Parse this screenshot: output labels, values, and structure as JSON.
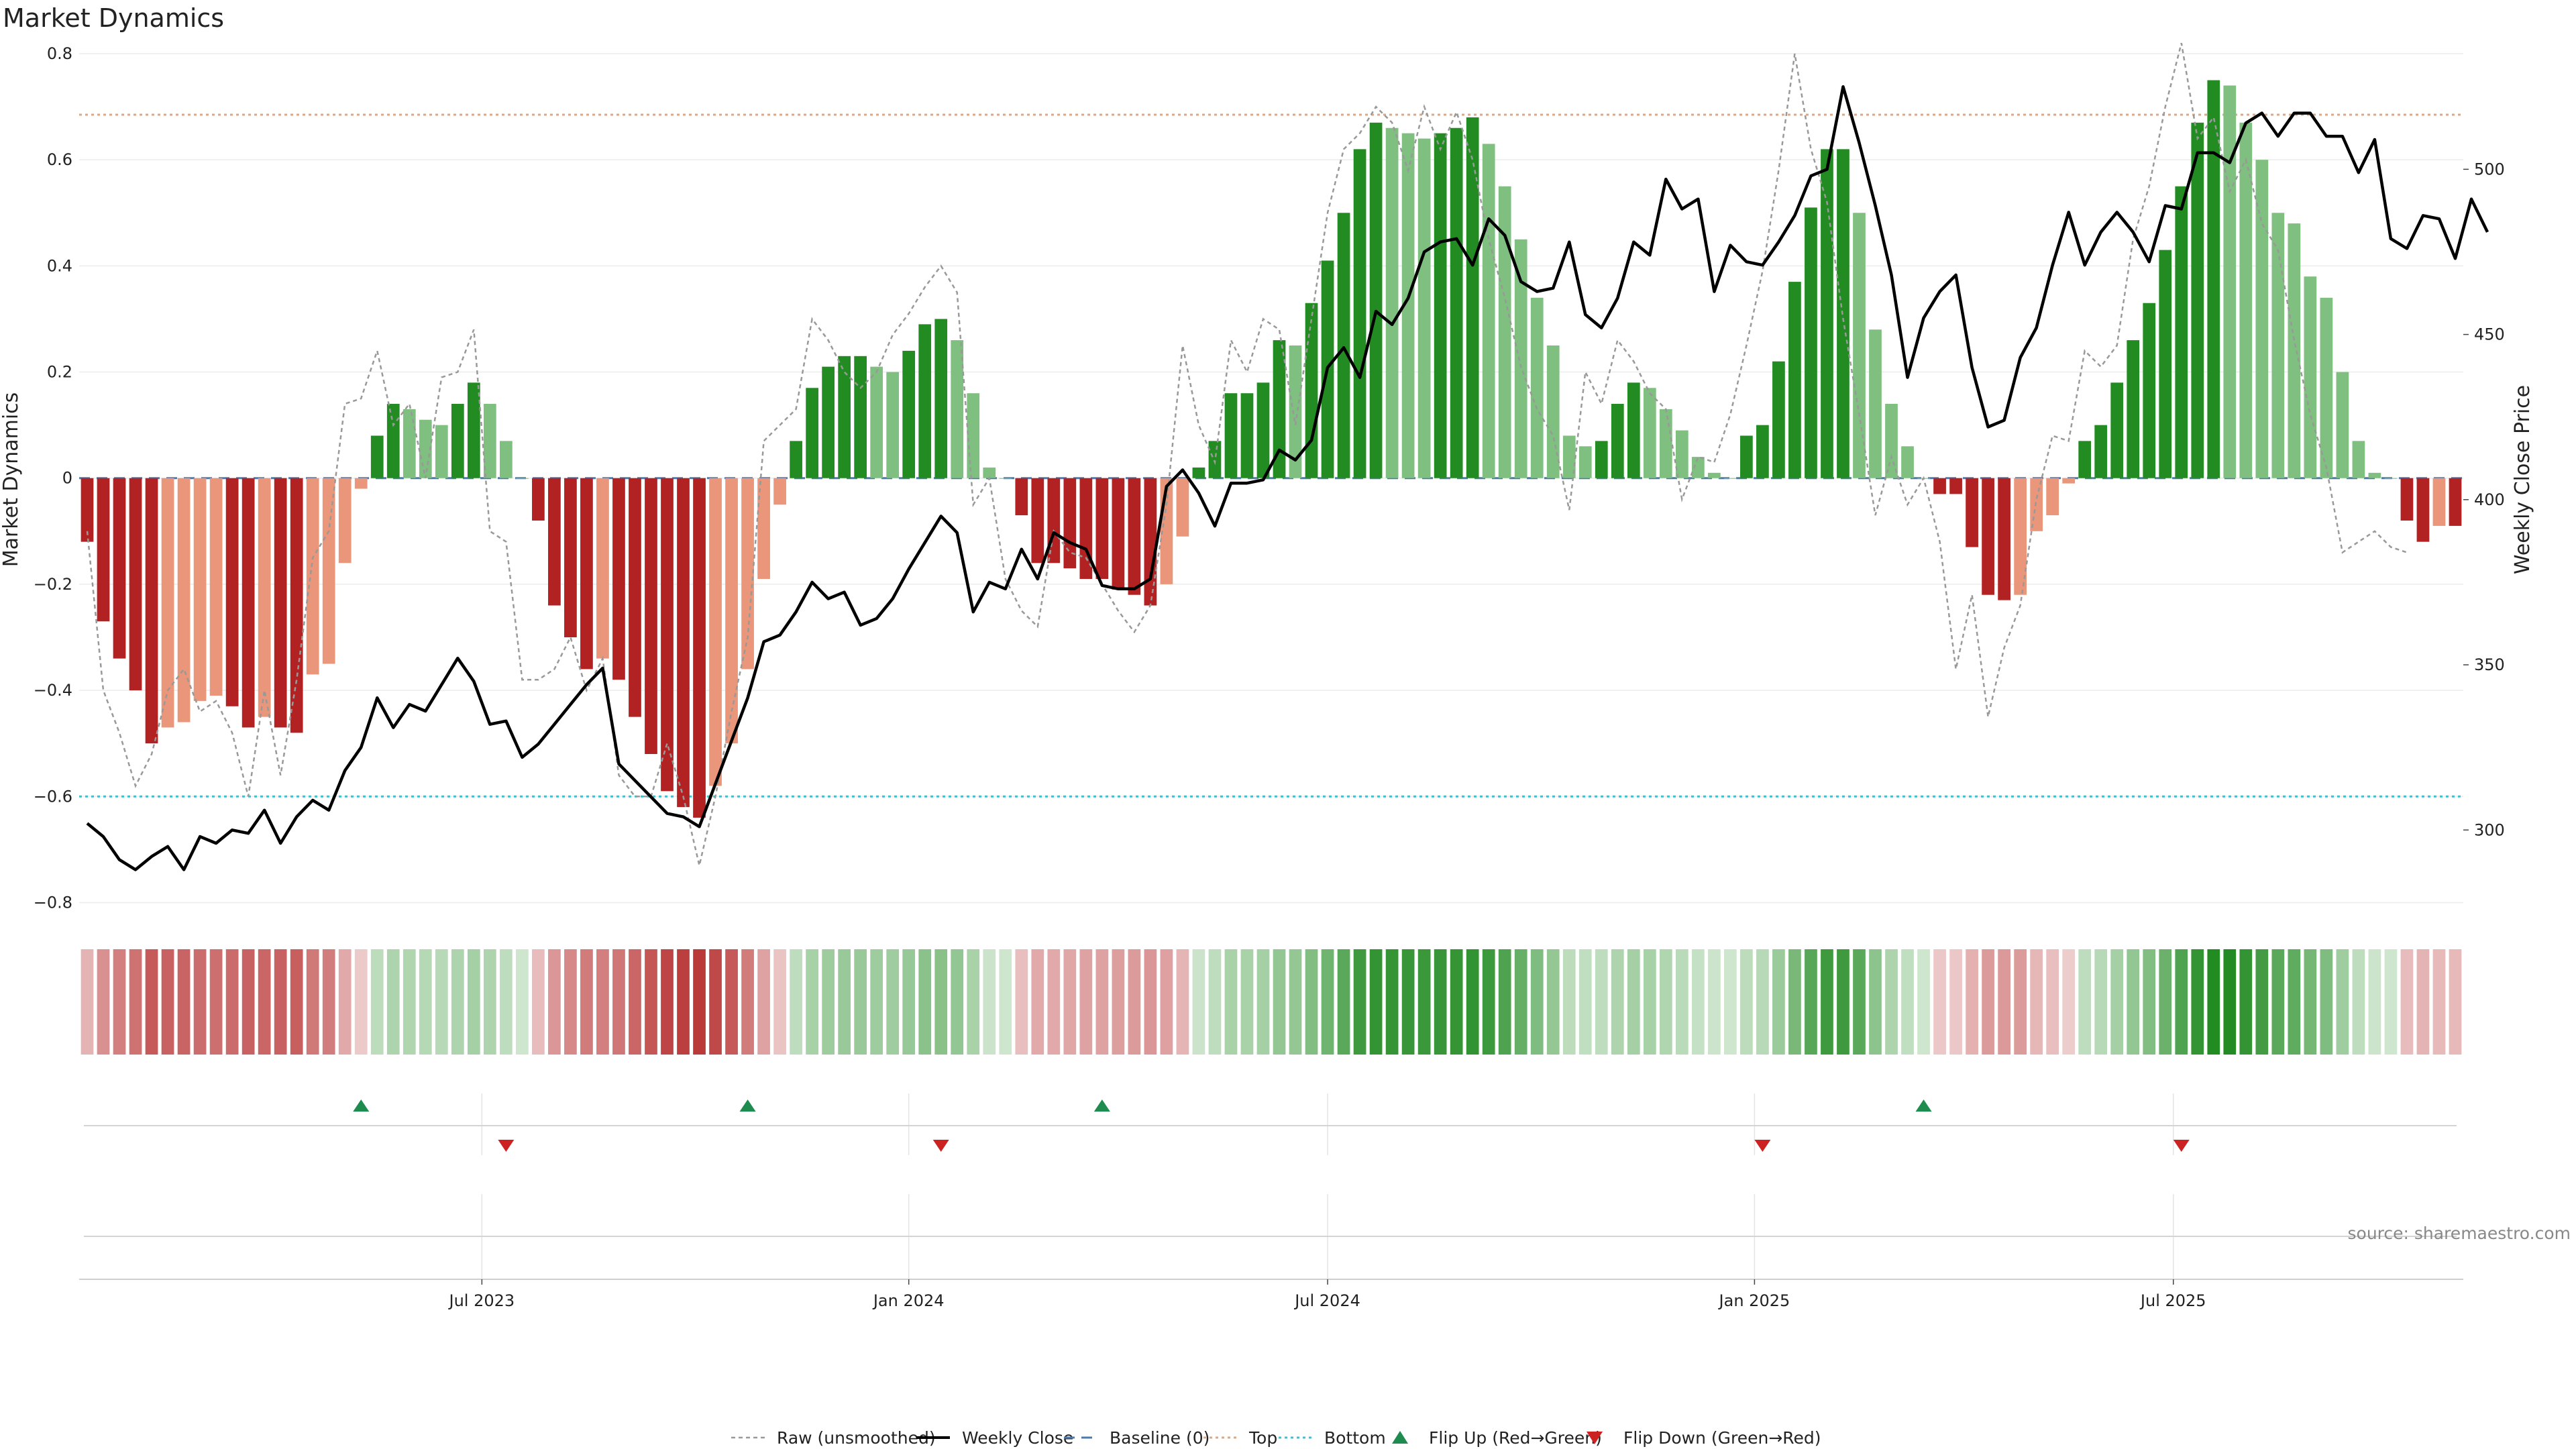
{
  "chart_data": {
    "type": "bar",
    "title": "Market Dynamics",
    "ylabel_left": "Market Dynamics",
    "ylabel_right": "Weekly Close Price",
    "source": "source: sharemaestro.com",
    "ylim_left": [
      -0.85,
      0.8
    ],
    "ylim_right": [
      270,
      535
    ],
    "yticks_left": [
      0.8,
      0.6,
      0.4,
      0.2,
      0,
      -0.2,
      -0.4,
      -0.6,
      -0.8
    ],
    "ytick_labels_left": [
      "0.8",
      "0.6",
      "0.4",
      "0.2",
      "0",
      "−0.2",
      "−0.4",
      "−0.6",
      "−0.8"
    ],
    "yticks_right": [
      300,
      350,
      400,
      450,
      500
    ],
    "ytick_labels_right": [
      "300",
      "350",
      "400",
      "450",
      "500"
    ],
    "xticks": [
      {
        "index": 24.5,
        "label": "Jul 2023"
      },
      {
        "index": 51,
        "label": "Jan 2024"
      },
      {
        "index": 77,
        "label": "Jul 2024"
      },
      {
        "index": 103.5,
        "label": "Jan 2025"
      },
      {
        "index": 129.5,
        "label": "Jul 2025"
      }
    ],
    "top_level": 0.685,
    "bottom_level": -0.6,
    "baseline": 0,
    "grid": true,
    "legend_position": "bottom-center",
    "legend": [
      {
        "label": "Raw (unsmoothed)",
        "style": "dotted-gray"
      },
      {
        "label": "Weekly Close",
        "style": "solid-black"
      },
      {
        "label": "Baseline (0)",
        "style": "dashed-blue"
      },
      {
        "label": "Top",
        "style": "dotted-tan"
      },
      {
        "label": "Bottom",
        "style": "dotted-cyan"
      },
      {
        "label": "Flip Up (Red→Green)",
        "style": "up-triangle"
      },
      {
        "label": "Flip Down (Green→Red)",
        "style": "down-triangle"
      }
    ],
    "colors": {
      "strong_red": "#b22222",
      "weak_red": "#e9967a",
      "strong_green": "#228b22",
      "weak_green": "#7fbf7f",
      "close_line": "#000000",
      "raw_line": "#999999",
      "baseline": "#4a7ab0",
      "top": "#d9aa88",
      "bottom": "#3fbfd0",
      "flip_up": "#1e8c4e",
      "flip_down": "#cc2222"
    },
    "series": [
      {
        "name": "Market Dynamics",
        "values": [
          -0.12,
          -0.27,
          -0.34,
          -0.4,
          -0.5,
          -0.47,
          -0.46,
          -0.42,
          -0.41,
          -0.43,
          -0.47,
          -0.45,
          -0.47,
          -0.48,
          -0.37,
          -0.35,
          -0.16,
          -0.02,
          0.08,
          0.14,
          0.13,
          0.11,
          0.1,
          0.14,
          0.18,
          0.14,
          0.07,
          0,
          -0.08,
          -0.24,
          -0.3,
          -0.36,
          -0.34,
          -0.38,
          -0.45,
          -0.52,
          -0.59,
          -0.62,
          -0.64,
          -0.58,
          -0.5,
          -0.36,
          -0.19,
          -0.05,
          0.07,
          0.17,
          0.21,
          0.23,
          0.23,
          0.21,
          0.2,
          0.24,
          0.29,
          0.3,
          0.26,
          0.16,
          0.02,
          0,
          -0.07,
          -0.16,
          -0.16,
          -0.17,
          -0.19,
          -0.19,
          -0.21,
          -0.22,
          -0.24,
          -0.2,
          -0.11,
          0.02,
          0.07,
          0.16,
          0.16,
          0.18,
          0.26,
          0.25,
          0.33,
          0.41,
          0.5,
          0.62,
          0.67,
          0.66,
          0.65,
          0.64,
          0.65,
          0.66,
          0.68,
          0.63,
          0.55,
          0.45,
          0.34,
          0.25,
          0.08,
          0.06,
          0.07,
          0.14,
          0.18,
          0.17,
          0.13,
          0.09,
          0.04,
          0.01,
          0,
          0.08,
          0.1,
          0.22,
          0.37,
          0.51,
          0.62,
          0.62,
          0.5,
          0.28,
          0.14,
          0.06,
          0,
          -0.03,
          -0.03,
          -0.13,
          -0.22,
          -0.23,
          -0.22,
          -0.1,
          -0.07,
          -0.01,
          0.07,
          0.1,
          0.18,
          0.26,
          0.33,
          0.43,
          0.55,
          0.67,
          0.75,
          0.74,
          0.67,
          0.6,
          0.5,
          0.48,
          0.38,
          0.34,
          0.2,
          0.07,
          0.01,
          0,
          -0.08,
          -0.12,
          -0.09,
          -0.09
        ]
      },
      {
        "name": "Raw (unsmoothed)",
        "values": [
          -0.1,
          -0.4,
          -0.48,
          -0.58,
          -0.52,
          -0.4,
          -0.36,
          -0.44,
          -0.42,
          -0.48,
          -0.6,
          -0.4,
          -0.56,
          -0.38,
          -0.15,
          -0.1,
          0.14,
          0.15,
          0.24,
          0.1,
          0.14,
          0,
          0.19,
          0.2,
          0.28,
          -0.1,
          -0.12,
          -0.38,
          -0.38,
          -0.36,
          -0.3,
          -0.4,
          -0.34,
          -0.56,
          -0.6,
          -0.6,
          -0.5,
          -0.6,
          -0.73,
          -0.6,
          -0.44,
          -0.3,
          0.07,
          0.1,
          0.13,
          0.3,
          0.26,
          0.2,
          0.17,
          0.2,
          0.27,
          0.31,
          0.36,
          0.4,
          0.35,
          -0.05,
          0,
          -0.19,
          -0.25,
          -0.28,
          -0.1,
          -0.14,
          -0.15,
          -0.2,
          -0.25,
          -0.29,
          -0.24,
          -0.05,
          0.25,
          0.1,
          0.03,
          0.26,
          0.2,
          0.3,
          0.28,
          0.1,
          0.3,
          0.5,
          0.62,
          0.65,
          0.7,
          0.67,
          0.58,
          0.7,
          0.62,
          0.69,
          0.6,
          0.45,
          0.34,
          0.21,
          0.13,
          0.08,
          -0.06,
          0.2,
          0.14,
          0.26,
          0.22,
          0.16,
          0.13,
          -0.04,
          0.04,
          0.03,
          0.12,
          0.25,
          0.39,
          0.58,
          0.8,
          0.62,
          0.52,
          0.3,
          0.12,
          -0.07,
          0.04,
          -0.05,
          0,
          -0.12,
          -0.36,
          -0.22,
          -0.45,
          -0.32,
          -0.24,
          -0.04,
          0.08,
          0.07,
          0.24,
          0.21,
          0.25,
          0.45,
          0.55,
          0.7,
          0.82,
          0.64,
          0.68,
          0.54,
          0.6,
          0.48,
          0.43,
          0.26,
          0.12,
          0.02,
          -0.14,
          -0.12,
          -0.1,
          -0.13,
          -0.14
        ]
      },
      {
        "name": "Weekly Close",
        "values": [
          302,
          298,
          291,
          288,
          292,
          295,
          288,
          298,
          296,
          300,
          299,
          306,
          296,
          304,
          309,
          306,
          318,
          325,
          340,
          331,
          338,
          336,
          344,
          352,
          345,
          332,
          333,
          322,
          326,
          332,
          338,
          344,
          349,
          320,
          315,
          310,
          305,
          304,
          301,
          314,
          327,
          340,
          357,
          359,
          366,
          375,
          370,
          372,
          362,
          364,
          370,
          379,
          387,
          395,
          390,
          366,
          375,
          373,
          385,
          376,
          390,
          387,
          385,
          374,
          373,
          373,
          376,
          404,
          409,
          402,
          392,
          405,
          405,
          406,
          415,
          412,
          418,
          440,
          446,
          437,
          457,
          453,
          461,
          475,
          478,
          479,
          471,
          485,
          480,
          466,
          463,
          464,
          478,
          456,
          452,
          461,
          478,
          474,
          497,
          488,
          491,
          463,
          477,
          472,
          471,
          478,
          486,
          498,
          500,
          525,
          508,
          489,
          468,
          437,
          455,
          463,
          468,
          440,
          422,
          424,
          443,
          452,
          471,
          487,
          471,
          481,
          487,
          481,
          472,
          489,
          488,
          505,
          505,
          502,
          514,
          517,
          510,
          517,
          517,
          510,
          510,
          499,
          509,
          479,
          476,
          486,
          485,
          473,
          491,
          481
        ]
      }
    ],
    "flip_up_indices": [
      17,
      41,
      63,
      114
    ],
    "flip_down_indices": [
      26,
      53,
      104,
      130
    ]
  }
}
